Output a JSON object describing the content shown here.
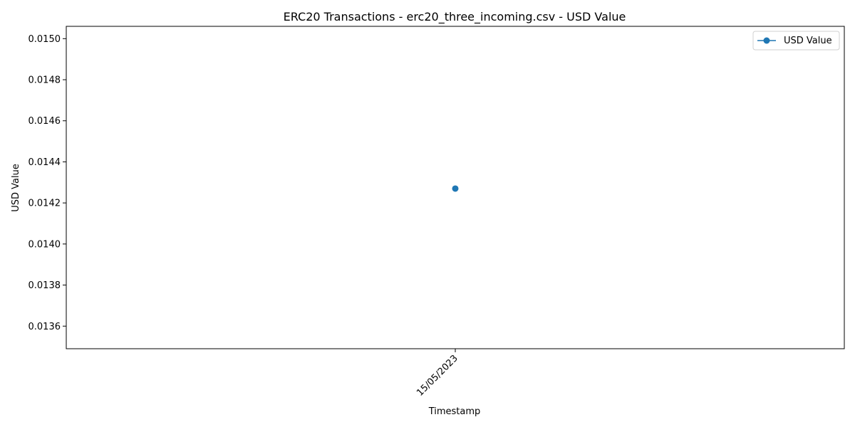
{
  "chart_data": {
    "type": "line",
    "title": "ERC20 Transactions - erc20_three_incoming.csv - USD Value",
    "xlabel": "Timestamp",
    "ylabel": "USD Value",
    "x": [
      "15/05/2023"
    ],
    "series": [
      {
        "name": "USD Value",
        "values": [
          0.01427
        ],
        "color": "#1f77b4",
        "marker": "circle"
      }
    ],
    "ylim": [
      0.01349,
      0.01506
    ],
    "yticks": [
      0.0136,
      0.0138,
      0.014,
      0.0142,
      0.0144,
      0.0146,
      0.0148,
      0.015
    ],
    "ytick_labels": [
      "0.0136",
      "0.0138",
      "0.0140",
      "0.0142",
      "0.0144",
      "0.0146",
      "0.0148",
      "0.0150"
    ],
    "xtick_rotation": 45,
    "grid": false,
    "legend": "top-right"
  }
}
